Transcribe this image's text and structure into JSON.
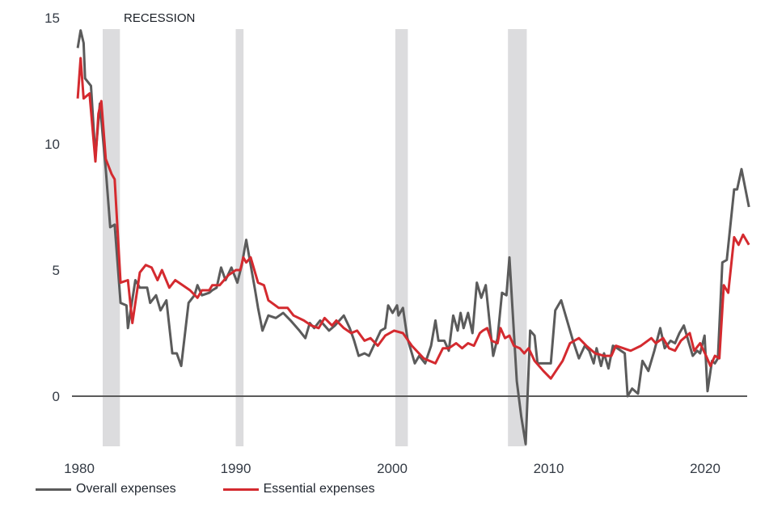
{
  "chart_data": {
    "type": "line",
    "title": "",
    "xlabel": "",
    "ylabel": "",
    "xlim": [
      1979.5,
      2022.8
    ],
    "ylim": [
      -2,
      15
    ],
    "x_ticks": [
      1980,
      1990,
      2000,
      2010,
      2020
    ],
    "y_ticks": [
      0,
      5,
      10,
      15
    ],
    "grid": false,
    "zero_line": true,
    "legend_placement": "bottom-left",
    "annotation": "RECESSION",
    "recessions": [
      {
        "start": 1981.5,
        "end": 1982.6
      },
      {
        "start": 1990.0,
        "end": 1990.5
      },
      {
        "start": 2000.2,
        "end": 2001.0
      },
      {
        "start": 2007.4,
        "end": 2008.6
      }
    ],
    "series": [
      {
        "name": "Overall expenses",
        "color": "#5b5b5b",
        "points": [
          [
            1979.9,
            13.8
          ],
          [
            1980.1,
            14.5
          ],
          [
            1980.3,
            14.0
          ],
          [
            1980.4,
            12.6
          ],
          [
            1980.8,
            12.3
          ],
          [
            1981.1,
            9.5
          ],
          [
            1981.4,
            11.6
          ],
          [
            1981.8,
            9.0
          ],
          [
            1982.1,
            6.7
          ],
          [
            1982.4,
            6.8
          ],
          [
            1982.8,
            3.7
          ],
          [
            1983.2,
            3.6
          ],
          [
            1983.3,
            2.7
          ],
          [
            1983.8,
            4.6
          ],
          [
            1984.1,
            4.3
          ],
          [
            1984.6,
            4.3
          ],
          [
            1984.8,
            3.7
          ],
          [
            1985.2,
            4.0
          ],
          [
            1985.5,
            3.4
          ],
          [
            1985.9,
            3.8
          ],
          [
            1986.3,
            1.7
          ],
          [
            1986.6,
            1.7
          ],
          [
            1986.9,
            1.2
          ],
          [
            1987.4,
            3.7
          ],
          [
            1987.8,
            4.0
          ],
          [
            1988.0,
            4.4
          ],
          [
            1988.3,
            4.0
          ],
          [
            1988.8,
            4.1
          ],
          [
            1989.0,
            4.2
          ],
          [
            1989.3,
            4.3
          ],
          [
            1989.6,
            5.1
          ],
          [
            1989.9,
            4.6
          ],
          [
            1990.3,
            5.1
          ],
          [
            1990.7,
            4.5
          ],
          [
            1991.0,
            5.2
          ],
          [
            1991.3,
            6.2
          ],
          [
            1991.9,
            4.2
          ],
          [
            1992.1,
            3.5
          ],
          [
            1992.4,
            2.6
          ],
          [
            1992.8,
            3.2
          ],
          [
            1993.3,
            3.1
          ],
          [
            1993.8,
            3.3
          ],
          [
            1994.3,
            3.0
          ],
          [
            1994.9,
            2.6
          ],
          [
            1995.3,
            2.3
          ],
          [
            1995.6,
            2.9
          ],
          [
            1995.9,
            2.7
          ],
          [
            1996.3,
            3.0
          ],
          [
            1996.6,
            2.8
          ],
          [
            1996.9,
            2.6
          ],
          [
            1997.3,
            2.8
          ],
          [
            1997.9,
            3.2
          ],
          [
            1998.3,
            2.7
          ],
          [
            1998.6,
            2.2
          ],
          [
            1998.9,
            1.6
          ],
          [
            1999.3,
            1.7
          ],
          [
            1999.6,
            1.6
          ],
          [
            2000.0,
            2.1
          ],
          [
            2000.4,
            2.6
          ],
          [
            2000.7,
            2.7
          ],
          [
            2000.9,
            3.6
          ],
          [
            2001.2,
            3.3
          ],
          [
            2001.5,
            3.6
          ],
          [
            2001.6,
            3.2
          ],
          [
            2001.9,
            3.5
          ],
          [
            2002.2,
            2.3
          ],
          [
            2002.7,
            1.3
          ],
          [
            2003.0,
            1.6
          ],
          [
            2003.4,
            1.3
          ],
          [
            2003.8,
            2.0
          ],
          [
            2004.1,
            3.0
          ],
          [
            2004.3,
            2.2
          ],
          [
            2004.7,
            2.2
          ],
          [
            2005.0,
            1.8
          ],
          [
            2005.3,
            3.2
          ],
          [
            2005.6,
            2.6
          ],
          [
            2005.8,
            3.3
          ],
          [
            2006.0,
            2.7
          ],
          [
            2006.3,
            3.3
          ],
          [
            2006.6,
            2.5
          ],
          [
            2006.9,
            4.5
          ],
          [
            2007.2,
            3.9
          ],
          [
            2007.5,
            4.4
          ],
          [
            2007.8,
            2.7
          ],
          [
            2008.0,
            1.6
          ],
          [
            2008.3,
            2.3
          ],
          [
            2008.6,
            4.1
          ],
          [
            2008.9,
            4.0
          ],
          [
            2009.1,
            5.5
          ],
          [
            2009.6,
            0.6
          ],
          [
            2009.9,
            -0.8
          ],
          [
            2010.2,
            -1.9
          ],
          [
            2010.5,
            2.6
          ],
          [
            2010.8,
            2.4
          ],
          [
            2011.0,
            1.3
          ],
          [
            2011.4,
            1.3
          ],
          [
            2011.9,
            1.3
          ],
          [
            2012.2,
            3.4
          ],
          [
            2012.6,
            3.8
          ],
          [
            2013.4,
            2.2
          ],
          [
            2013.8,
            1.5
          ],
          [
            2014.2,
            2.0
          ],
          [
            2014.5,
            1.8
          ],
          [
            2014.8,
            1.3
          ],
          [
            2015.0,
            1.9
          ],
          [
            2015.3,
            1.2
          ],
          [
            2015.5,
            1.7
          ],
          [
            2015.8,
            1.1
          ],
          [
            2016.1,
            2.0
          ],
          [
            2016.4,
            1.9
          ],
          [
            2016.9,
            1.7
          ],
          [
            2017.1,
            0.0
          ],
          [
            2017.4,
            0.3
          ],
          [
            2017.8,
            0.1
          ],
          [
            2018.1,
            1.4
          ],
          [
            2018.5,
            1.0
          ],
          [
            2018.9,
            1.8
          ],
          [
            2019.3,
            2.7
          ],
          [
            2019.6,
            1.9
          ],
          [
            2020.0,
            2.2
          ],
          [
            2020.3,
            2.1
          ],
          [
            2020.6,
            2.5
          ],
          [
            2020.9,
            2.8
          ],
          [
            2021.2,
            2.2
          ],
          [
            2021.5,
            1.6
          ],
          [
            2021.8,
            1.8
          ],
          [
            2022.0,
            1.7
          ],
          [
            2022.3,
            2.4
          ],
          [
            2022.5,
            0.2
          ],
          [
            2022.8,
            1.4
          ],
          [
            2023.0,
            1.3
          ],
          [
            2023.2,
            1.5
          ],
          [
            2023.5,
            5.3
          ],
          [
            2023.8,
            5.4
          ],
          [
            2024.3,
            8.2
          ],
          [
            2024.5,
            8.2
          ],
          [
            2024.8,
            9.0
          ],
          [
            2025.3,
            7.5
          ]
        ]
      },
      {
        "name": "Essential expenses",
        "color": "#d42a2f",
        "points": [
          [
            1979.9,
            11.8
          ],
          [
            1980.1,
            13.4
          ],
          [
            1980.3,
            11.8
          ],
          [
            1980.7,
            12.0
          ],
          [
            1981.1,
            9.3
          ],
          [
            1981.3,
            11.2
          ],
          [
            1981.5,
            11.7
          ],
          [
            1981.8,
            9.4
          ],
          [
            1982.2,
            8.8
          ],
          [
            1982.4,
            8.6
          ],
          [
            1982.8,
            4.5
          ],
          [
            1983.3,
            4.6
          ],
          [
            1983.6,
            2.9
          ],
          [
            1984.1,
            4.9
          ],
          [
            1984.5,
            5.2
          ],
          [
            1984.9,
            5.1
          ],
          [
            1985.3,
            4.6
          ],
          [
            1985.6,
            5.0
          ],
          [
            1986.1,
            4.3
          ],
          [
            1986.5,
            4.6
          ],
          [
            1987.0,
            4.4
          ],
          [
            1987.5,
            4.2
          ],
          [
            1988.0,
            3.9
          ],
          [
            1988.3,
            4.2
          ],
          [
            1988.8,
            4.2
          ],
          [
            1989.0,
            4.4
          ],
          [
            1989.5,
            4.4
          ],
          [
            1990.1,
            4.8
          ],
          [
            1990.6,
            5.0
          ],
          [
            1990.9,
            5.0
          ],
          [
            1991.1,
            5.5
          ],
          [
            1991.3,
            5.3
          ],
          [
            1991.6,
            5.5
          ],
          [
            1992.1,
            4.5
          ],
          [
            1992.5,
            4.4
          ],
          [
            1992.8,
            3.8
          ],
          [
            1993.5,
            3.5
          ],
          [
            1994.1,
            3.5
          ],
          [
            1994.5,
            3.2
          ],
          [
            1995.2,
            3.0
          ],
          [
            1995.7,
            2.8
          ],
          [
            1996.2,
            2.7
          ],
          [
            1996.6,
            3.1
          ],
          [
            1997.1,
            2.8
          ],
          [
            1997.4,
            3.0
          ],
          [
            1997.9,
            2.7
          ],
          [
            1998.4,
            2.5
          ],
          [
            1998.8,
            2.6
          ],
          [
            1999.3,
            2.2
          ],
          [
            1999.7,
            2.3
          ],
          [
            2000.2,
            2.0
          ],
          [
            2000.7,
            2.4
          ],
          [
            2001.3,
            2.6
          ],
          [
            2001.9,
            2.5
          ],
          [
            2002.5,
            2.0
          ],
          [
            2003.3,
            1.5
          ],
          [
            2004.1,
            1.3
          ],
          [
            2004.6,
            1.9
          ],
          [
            2005.0,
            1.9
          ],
          [
            2005.5,
            2.1
          ],
          [
            2005.9,
            1.9
          ],
          [
            2006.3,
            2.1
          ],
          [
            2006.7,
            2.0
          ],
          [
            2007.1,
            2.5
          ],
          [
            2007.3,
            2.6
          ],
          [
            2007.6,
            2.7
          ],
          [
            2007.9,
            2.2
          ],
          [
            2008.3,
            2.1
          ],
          [
            2008.5,
            2.7
          ],
          [
            2008.8,
            2.3
          ],
          [
            2009.1,
            2.4
          ],
          [
            2009.4,
            2.0
          ],
          [
            2009.8,
            1.9
          ],
          [
            2010.1,
            1.7
          ],
          [
            2010.4,
            1.9
          ],
          [
            2010.8,
            1.4
          ],
          [
            2011.4,
            1.0
          ],
          [
            2011.9,
            0.7
          ],
          [
            2012.7,
            1.4
          ],
          [
            2013.2,
            2.1
          ],
          [
            2013.8,
            2.3
          ],
          [
            2014.3,
            2.0
          ],
          [
            2014.9,
            1.7
          ],
          [
            2015.5,
            1.6
          ],
          [
            2016.0,
            1.6
          ],
          [
            2016.3,
            2.0
          ],
          [
            2016.8,
            1.9
          ],
          [
            2017.3,
            1.8
          ],
          [
            2018.0,
            2.0
          ],
          [
            2018.7,
            2.3
          ],
          [
            2019.0,
            2.1
          ],
          [
            2019.5,
            2.3
          ],
          [
            2019.9,
            1.9
          ],
          [
            2020.3,
            1.8
          ],
          [
            2020.7,
            2.2
          ],
          [
            2021.3,
            2.5
          ],
          [
            2021.6,
            1.8
          ],
          [
            2022.0,
            2.1
          ],
          [
            2022.4,
            1.6
          ],
          [
            2022.7,
            1.2
          ],
          [
            2023.0,
            1.6
          ],
          [
            2023.3,
            1.5
          ],
          [
            2023.6,
            4.4
          ],
          [
            2023.9,
            4.1
          ],
          [
            2024.3,
            6.3
          ],
          [
            2024.6,
            6.0
          ],
          [
            2024.9,
            6.4
          ],
          [
            2025.3,
            6.0
          ]
        ]
      }
    ]
  },
  "legend": [
    {
      "label": "Overall expenses",
      "color": "#5b5b5b"
    },
    {
      "label": "Essential expenses",
      "color": "#d42a2f"
    }
  ],
  "colors": {
    "recession_band": "#dcdcde",
    "zero_line": "#5b5b5b",
    "tick_text": "#333a44"
  }
}
